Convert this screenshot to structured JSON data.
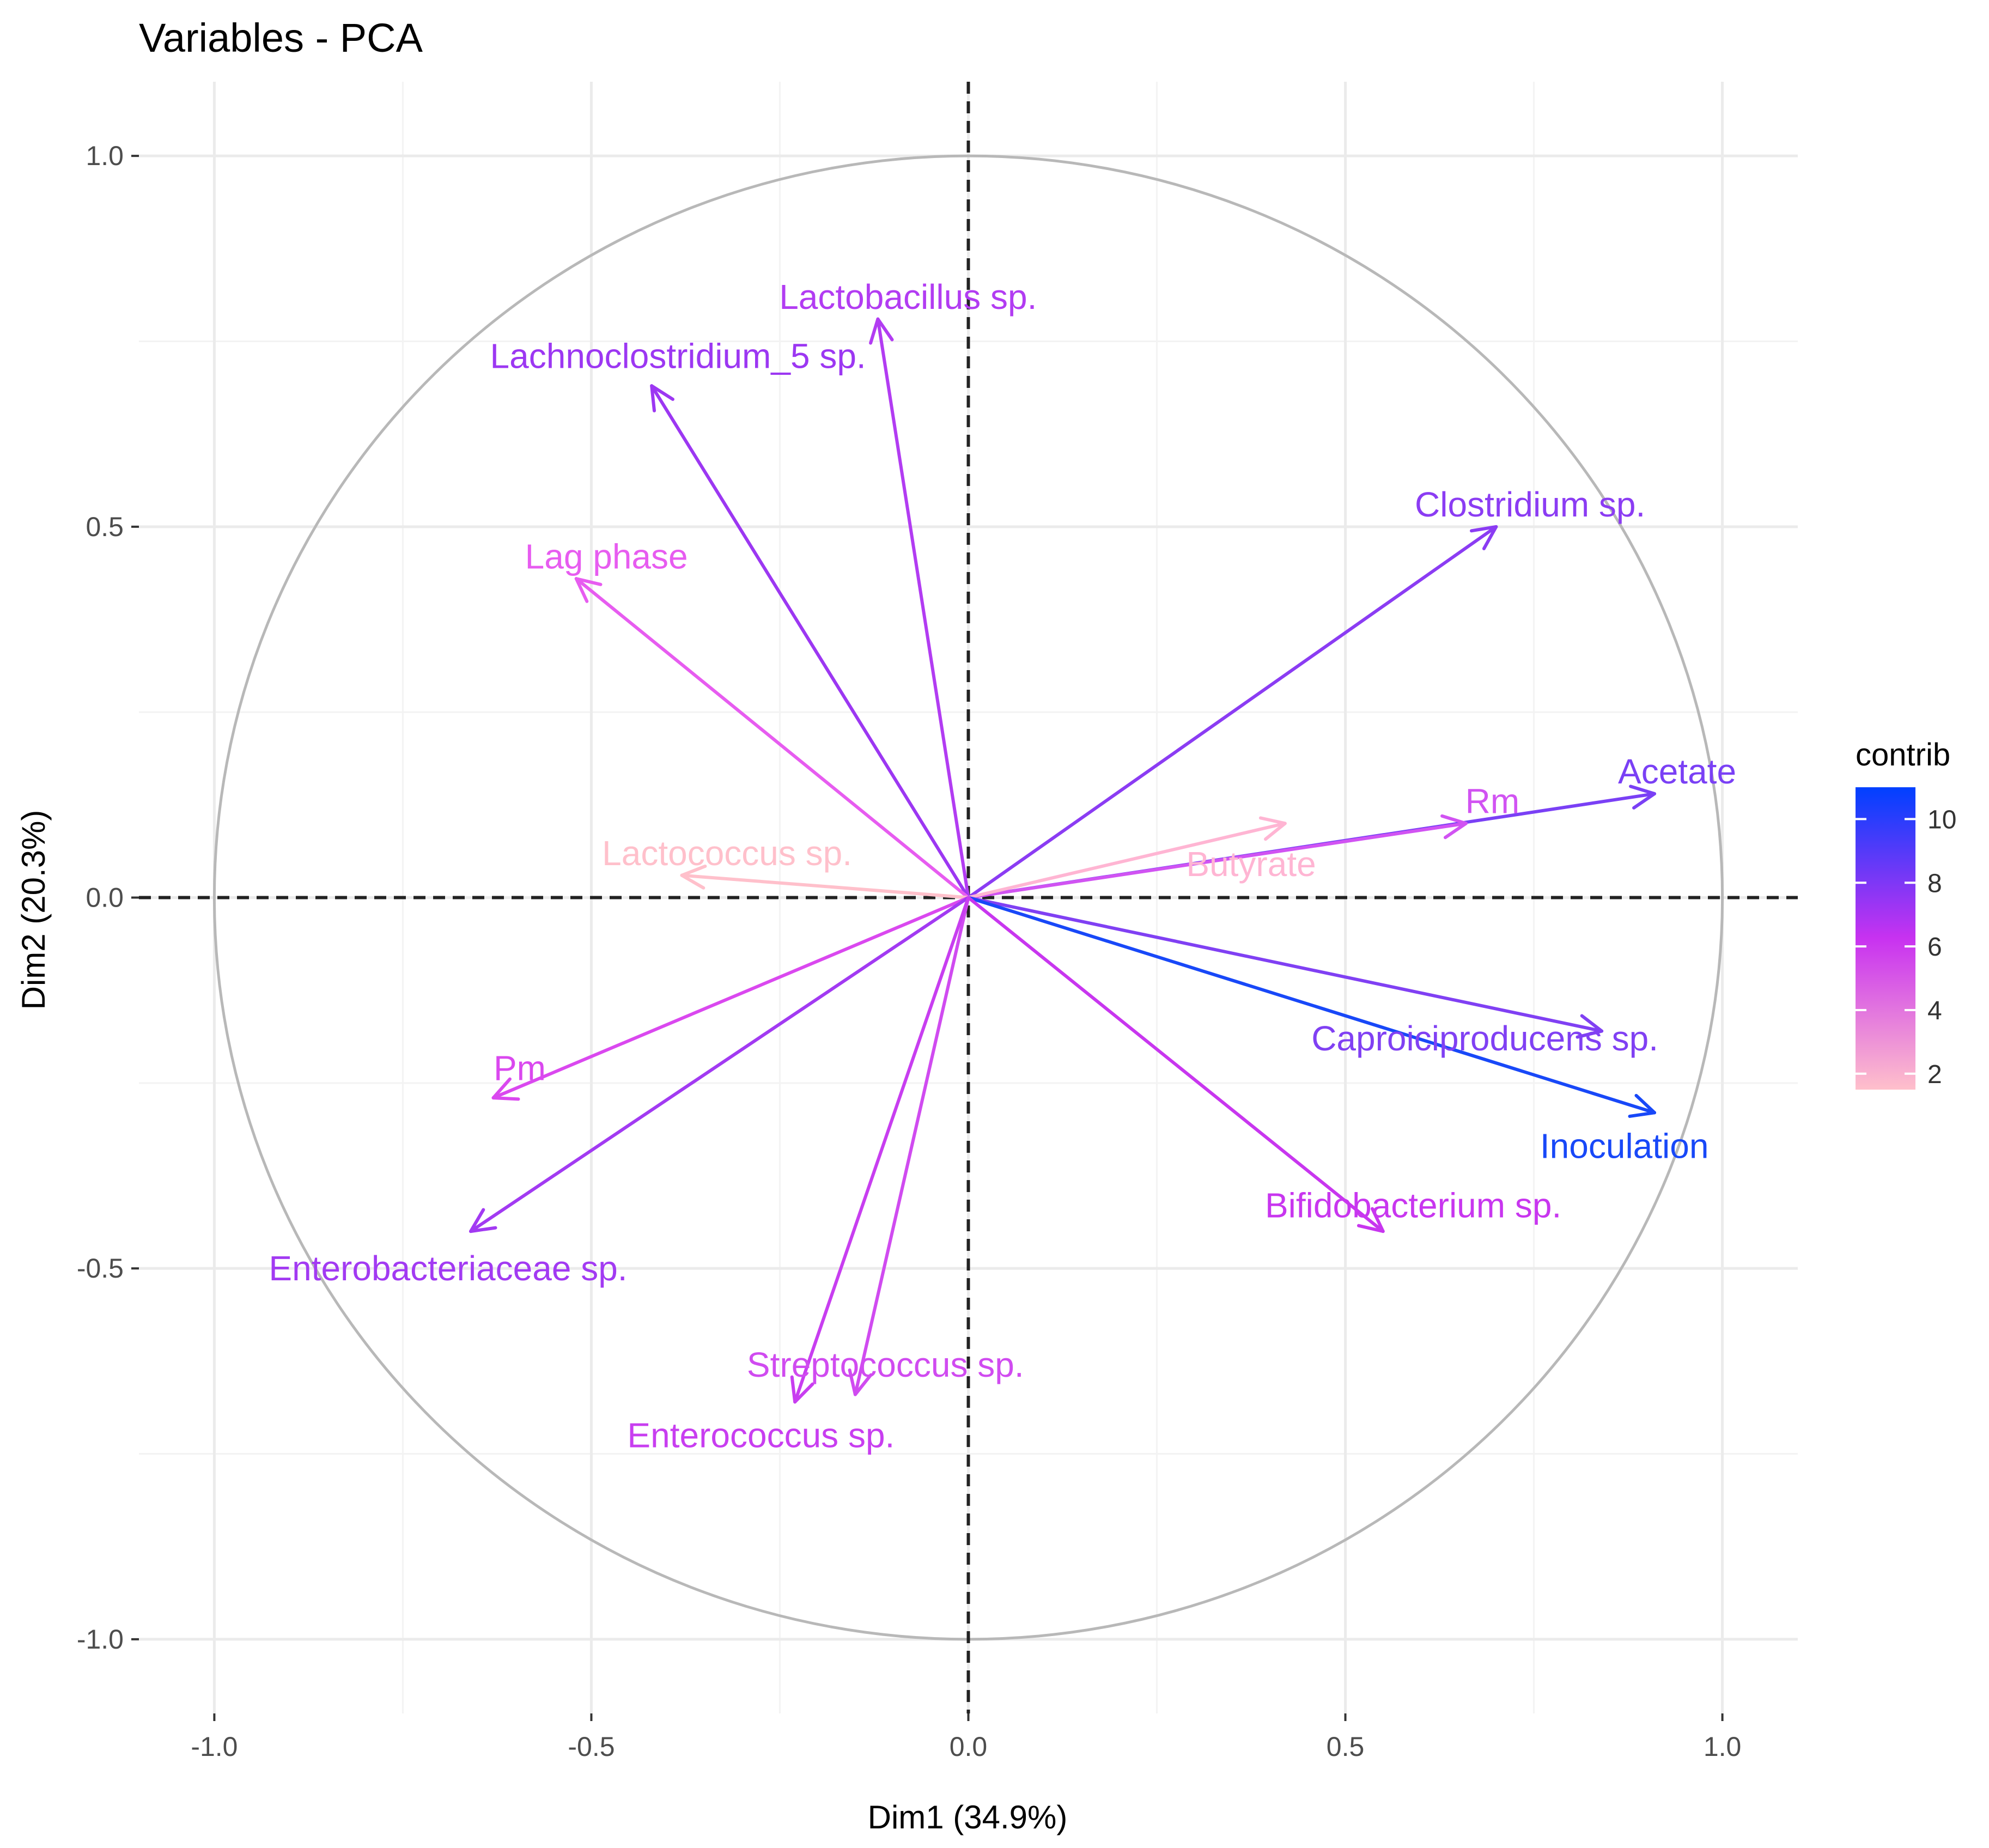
{
  "chart_data": {
    "type": "pca-correlation-circle",
    "title": "Variables - PCA",
    "xlabel": "Dim1 (34.9%)",
    "ylabel": "Dim2 (20.3%)",
    "xlim": [
      -1.1,
      1.1
    ],
    "ylim": [
      -1.1,
      1.1
    ],
    "x_ticks": [
      -1.0,
      -0.5,
      0.0,
      0.5,
      1.0
    ],
    "y_ticks": [
      -1.0,
      -0.5,
      0.0,
      0.5,
      1.0
    ],
    "x_tick_labels": [
      "-1.0",
      "-0.5",
      "0.0",
      "0.5",
      "1.0"
    ],
    "y_tick_labels": [
      "-1.0",
      "-0.5",
      "0.0",
      "0.5",
      "1.0"
    ],
    "grid": true,
    "unit_circle": true,
    "zero_lines": "dashed",
    "legend": {
      "title": "contrib",
      "position": "right",
      "min": 1.5,
      "max": 11,
      "ticks": [
        2,
        4,
        6,
        8,
        10
      ],
      "tick_labels": [
        "2",
        "4",
        "6",
        "8",
        "10"
      ],
      "low_color": "#ffc0cb",
      "mid_color": "#c832f0",
      "high_color": "#0040ff"
    },
    "variables": [
      {
        "name": "Lactobacillus sp.",
        "dim1": -0.12,
        "dim2": 0.78,
        "contrib": 6.5,
        "color": "#b23cf2",
        "label_at": [
          -0.08,
          0.81
        ]
      },
      {
        "name": "Lachnoclostridium_5 sp.",
        "dim1": -0.42,
        "dim2": 0.69,
        "contrib": 7.3,
        "color": "#9c37f2",
        "label_at": [
          -0.385,
          0.73
        ]
      },
      {
        "name": "Clostridium sp.",
        "dim1": 0.7,
        "dim2": 0.5,
        "contrib": 8.2,
        "color": "#8b3cf3",
        "label_at": [
          0.745,
          0.53
        ]
      },
      {
        "name": "Lag phase",
        "dim1": -0.52,
        "dim2": 0.43,
        "contrib": 4.5,
        "color": "#e75cf0",
        "label_at": [
          -0.48,
          0.46
        ]
      },
      {
        "name": "Acetate",
        "dim1": 0.91,
        "dim2": 0.14,
        "contrib": 9.0,
        "color": "#7a40f5",
        "label_at": [
          0.94,
          0.17
        ]
      },
      {
        "name": "Rm",
        "dim1": 0.66,
        "dim2": 0.1,
        "contrib": 5.5,
        "color": "#d153f2",
        "label_at": [
          0.695,
          0.13
        ]
      },
      {
        "name": "Lactococcus sp.",
        "dim1": -0.38,
        "dim2": 0.03,
        "contrib": 2.0,
        "color": "#ffc0cb",
        "label_at": [
          -0.32,
          0.06
        ]
      },
      {
        "name": "Butyrate",
        "dim1": 0.42,
        "dim2": 0.1,
        "contrib": 2.5,
        "color": "#ffb5d3",
        "label_at": [
          0.375,
          0.045
        ]
      },
      {
        "name": "Caproiciproducens sp.",
        "dim1": 0.84,
        "dim2": -0.18,
        "contrib": 8.5,
        "color": "#8040f3",
        "label_at": [
          0.685,
          -0.19
        ]
      },
      {
        "name": "Inoculation",
        "dim1": 0.91,
        "dim2": -0.29,
        "contrib": 11.0,
        "color": "#1848f8",
        "label_at": [
          0.87,
          -0.335
        ]
      },
      {
        "name": "Bifidobacterium sp.",
        "dim1": 0.55,
        "dim2": -0.45,
        "contrib": 6.3,
        "color": "#c836ef",
        "label_at": [
          0.59,
          -0.415
        ]
      },
      {
        "name": "Pm",
        "dim1": -0.63,
        "dim2": -0.27,
        "contrib": 5.0,
        "color": "#da48ef",
        "label_at": [
          -0.595,
          -0.23
        ]
      },
      {
        "name": "Enterobacteriaceae sp.",
        "dim1": -0.66,
        "dim2": -0.45,
        "contrib": 7.4,
        "color": "#a23af2",
        "label_at": [
          -0.69,
          -0.5
        ]
      },
      {
        "name": "Streptococcus sp.",
        "dim1": -0.15,
        "dim2": -0.67,
        "contrib": 5.5,
        "color": "#d04bf0",
        "label_at": [
          -0.11,
          -0.63
        ]
      },
      {
        "name": "Enterococcus sp.",
        "dim1": -0.23,
        "dim2": -0.68,
        "contrib": 6.3,
        "color": "#c83ef0",
        "label_at": [
          -0.275,
          -0.725
        ]
      }
    ]
  }
}
